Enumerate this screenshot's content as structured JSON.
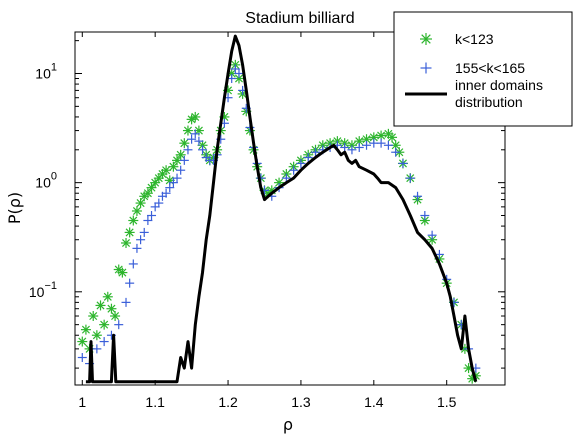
{
  "chart_data": {
    "type": "scatter",
    "title": "Stadium billiard",
    "xlabel": "ρ",
    "ylabel": "P(ρ)",
    "xlim": [
      0.99,
      1.58
    ],
    "ylim": [
      0.014,
      24
    ],
    "yscale": "log",
    "x_ticks": [
      1,
      1.1,
      1.2,
      1.3,
      1.4,
      1.5
    ],
    "x_tick_labels": [
      "1",
      "1.1",
      "1.2",
      "1.3",
      "1.4",
      "1.5"
    ],
    "y_ticks": [
      0.1,
      1,
      10
    ],
    "y_tick_labels": [
      {
        "base": "10",
        "exp": "−1"
      },
      {
        "base": "10",
        "exp": "0"
      },
      {
        "base": "10",
        "exp": "1"
      }
    ],
    "grid": false,
    "legend_position": "top-right",
    "series": [
      {
        "name": "k<123",
        "marker": "asterisk",
        "color": "#2db52d",
        "points": [
          [
            1.0,
            0.035
          ],
          [
            1.005,
            0.045
          ],
          [
            1.01,
            0.03
          ],
          [
            1.015,
            0.06
          ],
          [
            1.02,
            0.04
          ],
          [
            1.025,
            0.075
          ],
          [
            1.03,
            0.05
          ],
          [
            1.035,
            0.09
          ],
          [
            1.04,
            0.07
          ],
          [
            1.045,
            0.06
          ],
          [
            1.05,
            0.16
          ],
          [
            1.055,
            0.15
          ],
          [
            1.06,
            0.28
          ],
          [
            1.065,
            0.35
          ],
          [
            1.07,
            0.45
          ],
          [
            1.075,
            0.55
          ],
          [
            1.08,
            0.65
          ],
          [
            1.085,
            0.75
          ],
          [
            1.09,
            0.8
          ],
          [
            1.095,
            0.9
          ],
          [
            1.1,
            1.0
          ],
          [
            1.105,
            1.1
          ],
          [
            1.11,
            1.2
          ],
          [
            1.115,
            1.3
          ],
          [
            1.12,
            1.05
          ],
          [
            1.125,
            1.4
          ],
          [
            1.13,
            1.6
          ],
          [
            1.135,
            1.8
          ],
          [
            1.14,
            2.3
          ],
          [
            1.145,
            3.0
          ],
          [
            1.15,
            3.8
          ],
          [
            1.155,
            4.0
          ],
          [
            1.16,
            3.0
          ],
          [
            1.165,
            2.2
          ],
          [
            1.17,
            1.8
          ],
          [
            1.175,
            1.6
          ],
          [
            1.18,
            1.7
          ],
          [
            1.185,
            2.0
          ],
          [
            1.19,
            3.0
          ],
          [
            1.195,
            4.0
          ],
          [
            1.2,
            7.0
          ],
          [
            1.205,
            10.0
          ],
          [
            1.21,
            12.0
          ],
          [
            1.215,
            9.0
          ],
          [
            1.22,
            6.5
          ],
          [
            1.225,
            4.5
          ],
          [
            1.23,
            3.0
          ],
          [
            1.235,
            2.0
          ],
          [
            1.24,
            1.4
          ],
          [
            1.245,
            1.1
          ],
          [
            1.25,
            0.85
          ],
          [
            1.255,
            0.8
          ],
          [
            1.26,
            0.85
          ],
          [
            1.27,
            1.0
          ],
          [
            1.28,
            1.2
          ],
          [
            1.29,
            1.4
          ],
          [
            1.3,
            1.6
          ],
          [
            1.31,
            1.8
          ],
          [
            1.32,
            2.0
          ],
          [
            1.33,
            2.2
          ],
          [
            1.34,
            2.3
          ],
          [
            1.35,
            2.4
          ],
          [
            1.36,
            2.3
          ],
          [
            1.37,
            2.2
          ],
          [
            1.38,
            2.4
          ],
          [
            1.39,
            2.5
          ],
          [
            1.4,
            2.6
          ],
          [
            1.41,
            2.7
          ],
          [
            1.42,
            2.8
          ],
          [
            1.425,
            2.6
          ],
          [
            1.43,
            2.2
          ],
          [
            1.435,
            1.9
          ],
          [
            1.44,
            1.5
          ],
          [
            1.45,
            1.1
          ],
          [
            1.46,
            0.7
          ],
          [
            1.47,
            0.45
          ],
          [
            1.48,
            0.3
          ],
          [
            1.49,
            0.2
          ],
          [
            1.5,
            0.12
          ],
          [
            1.51,
            0.08
          ],
          [
            1.52,
            0.05
          ],
          [
            1.525,
            0.03
          ],
          [
            1.53,
            0.02
          ],
          [
            1.535,
            0.016
          ],
          [
            1.54,
            0.017
          ]
        ]
      },
      {
        "name": "155<k<165",
        "marker": "plus",
        "color": "#3a5fd9",
        "points": [
          [
            1.0,
            0.025
          ],
          [
            1.01,
            0.022
          ],
          [
            1.02,
            0.03
          ],
          [
            1.03,
            0.035
          ],
          [
            1.04,
            0.04
          ],
          [
            1.05,
            0.05
          ],
          [
            1.06,
            0.08
          ],
          [
            1.065,
            0.12
          ],
          [
            1.07,
            0.18
          ],
          [
            1.075,
            0.25
          ],
          [
            1.08,
            0.3
          ],
          [
            1.085,
            0.35
          ],
          [
            1.09,
            0.45
          ],
          [
            1.095,
            0.5
          ],
          [
            1.1,
            0.6
          ],
          [
            1.105,
            0.65
          ],
          [
            1.11,
            0.75
          ],
          [
            1.115,
            0.8
          ],
          [
            1.12,
            0.9
          ],
          [
            1.125,
            1.0
          ],
          [
            1.13,
            1.1
          ],
          [
            1.135,
            1.3
          ],
          [
            1.14,
            1.6
          ],
          [
            1.145,
            2.0
          ],
          [
            1.15,
            2.5
          ],
          [
            1.155,
            2.8
          ],
          [
            1.16,
            2.4
          ],
          [
            1.165,
            2.0
          ],
          [
            1.17,
            1.7
          ],
          [
            1.175,
            1.6
          ],
          [
            1.18,
            1.6
          ],
          [
            1.185,
            1.8
          ],
          [
            1.19,
            2.5
          ],
          [
            1.195,
            3.5
          ],
          [
            1.2,
            6.0
          ],
          [
            1.205,
            9.0
          ],
          [
            1.21,
            11.0
          ],
          [
            1.215,
            10.0
          ],
          [
            1.22,
            7.0
          ],
          [
            1.225,
            4.8
          ],
          [
            1.23,
            3.2
          ],
          [
            1.235,
            2.1
          ],
          [
            1.24,
            1.5
          ],
          [
            1.245,
            1.1
          ],
          [
            1.25,
            0.85
          ],
          [
            1.26,
            0.75
          ],
          [
            1.27,
            0.9
          ],
          [
            1.28,
            1.1
          ],
          [
            1.29,
            1.3
          ],
          [
            1.3,
            1.5
          ],
          [
            1.31,
            1.7
          ],
          [
            1.32,
            1.9
          ],
          [
            1.33,
            2.0
          ],
          [
            1.34,
            2.1
          ],
          [
            1.35,
            2.2
          ],
          [
            1.36,
            2.1
          ],
          [
            1.37,
            2.0
          ],
          [
            1.38,
            2.1
          ],
          [
            1.39,
            2.2
          ],
          [
            1.4,
            2.3
          ],
          [
            1.41,
            2.3
          ],
          [
            1.42,
            2.2
          ],
          [
            1.43,
            1.9
          ],
          [
            1.44,
            1.5
          ],
          [
            1.45,
            1.1
          ],
          [
            1.46,
            0.75
          ],
          [
            1.47,
            0.5
          ],
          [
            1.48,
            0.33
          ],
          [
            1.49,
            0.22
          ],
          [
            1.5,
            0.13
          ],
          [
            1.51,
            0.08
          ],
          [
            1.52,
            0.05
          ],
          [
            1.53,
            0.03
          ],
          [
            1.54,
            0.02
          ]
        ]
      },
      {
        "name": "inner domains distribution",
        "marker": "line",
        "color": "#000000",
        "points": [
          [
            1.005,
            0.015
          ],
          [
            1.01,
            0.015
          ],
          [
            1.012,
            0.035
          ],
          [
            1.014,
            0.015
          ],
          [
            1.04,
            0.015
          ],
          [
            1.043,
            0.04
          ],
          [
            1.046,
            0.015
          ],
          [
            1.05,
            0.015
          ],
          [
            1.13,
            0.015
          ],
          [
            1.135,
            0.025
          ],
          [
            1.14,
            0.02
          ],
          [
            1.145,
            0.035
          ],
          [
            1.15,
            0.02
          ],
          [
            1.155,
            0.05
          ],
          [
            1.16,
            0.09
          ],
          [
            1.165,
            0.15
          ],
          [
            1.17,
            0.3
          ],
          [
            1.175,
            0.5
          ],
          [
            1.18,
            1.0
          ],
          [
            1.185,
            2.0
          ],
          [
            1.19,
            3.5
          ],
          [
            1.195,
            6.0
          ],
          [
            1.2,
            10.0
          ],
          [
            1.205,
            16.0
          ],
          [
            1.21,
            22.0
          ],
          [
            1.215,
            18.0
          ],
          [
            1.22,
            12.0
          ],
          [
            1.225,
            7.0
          ],
          [
            1.23,
            4.0
          ],
          [
            1.235,
            2.3
          ],
          [
            1.24,
            1.4
          ],
          [
            1.245,
            0.9
          ],
          [
            1.25,
            0.7
          ],
          [
            1.255,
            0.75
          ],
          [
            1.26,
            0.8
          ],
          [
            1.265,
            0.85
          ],
          [
            1.27,
            0.9
          ],
          [
            1.28,
            1.0
          ],
          [
            1.29,
            1.1
          ],
          [
            1.3,
            1.3
          ],
          [
            1.31,
            1.5
          ],
          [
            1.32,
            1.7
          ],
          [
            1.33,
            1.9
          ],
          [
            1.34,
            2.1
          ],
          [
            1.345,
            2.2
          ],
          [
            1.35,
            2.0
          ],
          [
            1.355,
            1.8
          ],
          [
            1.36,
            1.9
          ],
          [
            1.365,
            1.6
          ],
          [
            1.37,
            1.5
          ],
          [
            1.375,
            1.6
          ],
          [
            1.38,
            1.4
          ],
          [
            1.39,
            1.3
          ],
          [
            1.4,
            1.2
          ],
          [
            1.405,
            1.1
          ],
          [
            1.41,
            1.0
          ],
          [
            1.42,
            1.0
          ],
          [
            1.43,
            0.9
          ],
          [
            1.44,
            0.7
          ],
          [
            1.45,
            0.5
          ],
          [
            1.46,
            0.35
          ],
          [
            1.47,
            0.3
          ],
          [
            1.48,
            0.25
          ],
          [
            1.49,
            0.18
          ],
          [
            1.5,
            0.12
          ],
          [
            1.505,
            0.09
          ],
          [
            1.51,
            0.06
          ],
          [
            1.515,
            0.04
          ],
          [
            1.52,
            0.03
          ],
          [
            1.525,
            0.06
          ],
          [
            1.53,
            0.03
          ],
          [
            1.535,
            0.02
          ],
          [
            1.54,
            0.015
          ]
        ]
      }
    ],
    "legend_labels": [
      "k<123",
      "155<k<165",
      "inner domains",
      "distribution"
    ]
  }
}
